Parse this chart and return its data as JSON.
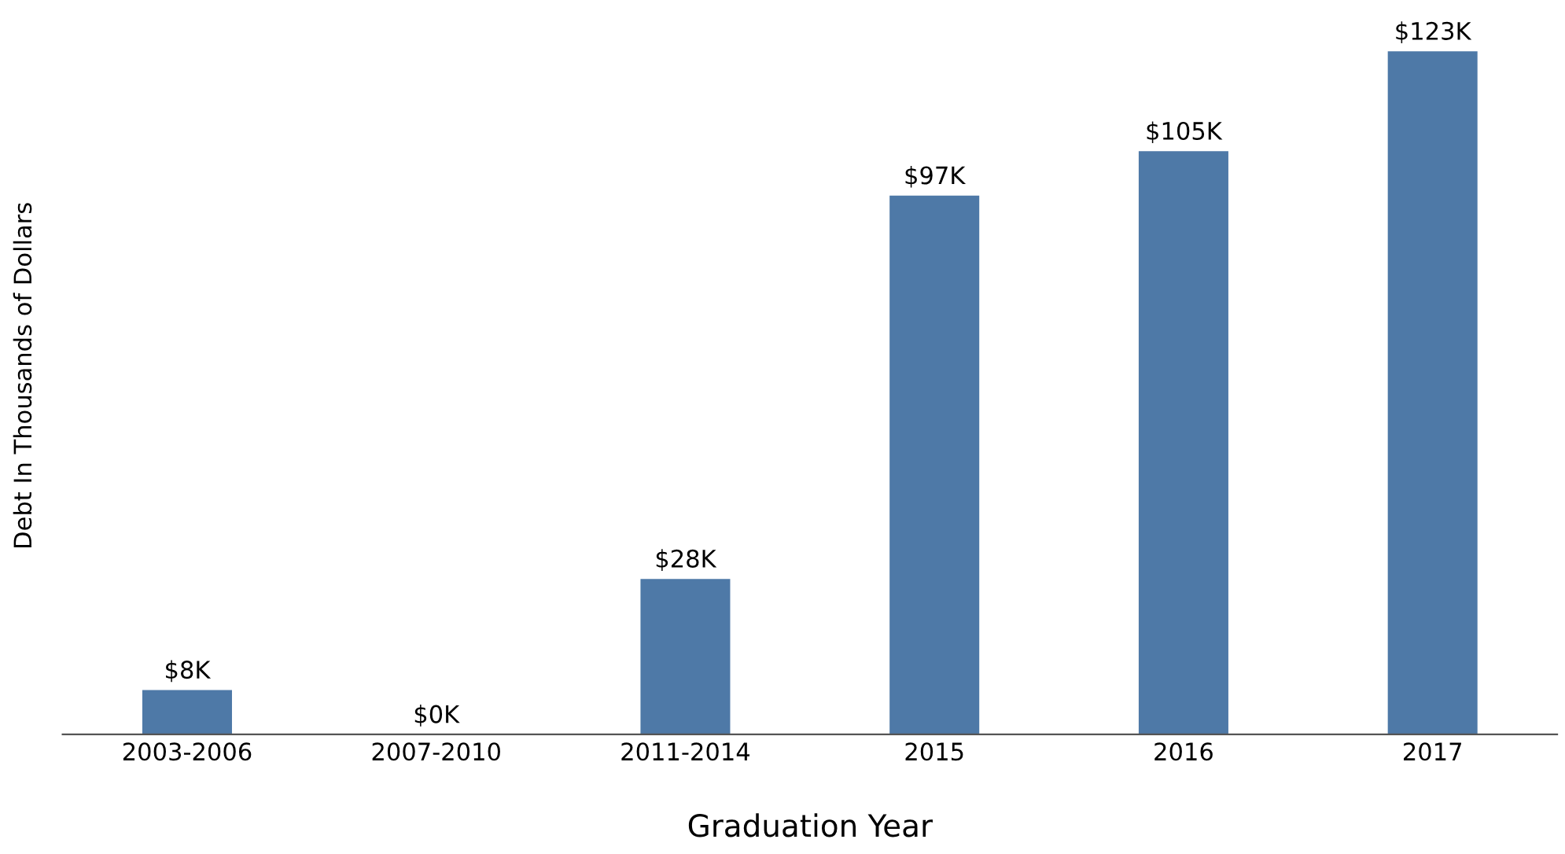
{
  "chart_data": {
    "type": "bar",
    "categories": [
      "2003-2006",
      "2007-2010",
      "2011-2014",
      "2015",
      "2016",
      "2017"
    ],
    "values": [
      8,
      0,
      28,
      97,
      105,
      123
    ],
    "value_labels": [
      "$8K",
      "$0K",
      "$28K",
      "$97K",
      "$105K",
      "$123K"
    ],
    "color": "#4e79a7",
    "xlabel": "Graduation Year",
    "ylabel": "Debt In Thousands of Dollars",
    "tick_labels": "x",
    "grid": false
  }
}
